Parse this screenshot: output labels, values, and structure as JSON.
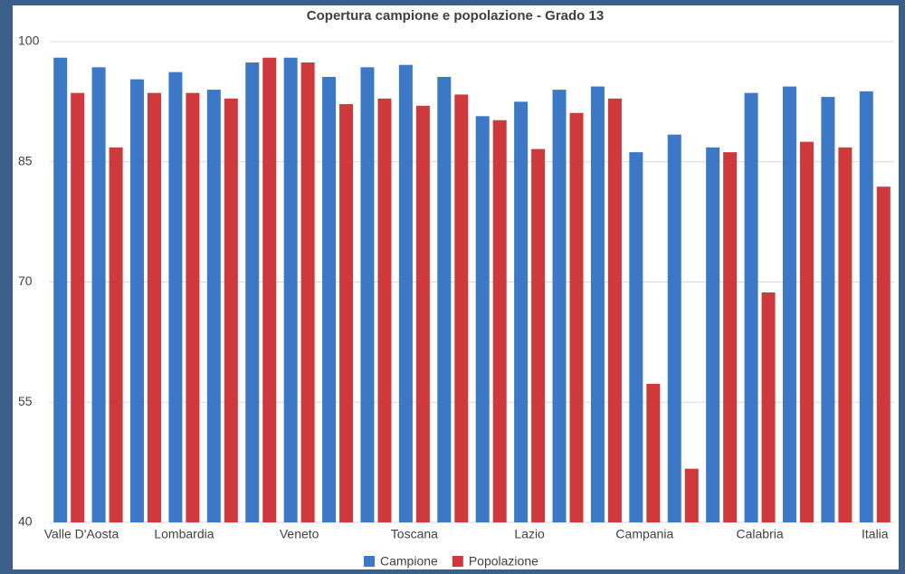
{
  "chart_data": {
    "type": "bar",
    "title": "Copertura campione e popolazione - Grado 13",
    "categories": [
      "Valle D'Aosta",
      null,
      null,
      "Lombardia",
      null,
      null,
      "Veneto",
      null,
      null,
      "Toscana",
      null,
      null,
      "Lazio",
      null,
      null,
      "Campania",
      null,
      null,
      "Calabria",
      null,
      null,
      "Italia"
    ],
    "series": [
      {
        "name": "Campione",
        "color": "#3b78c8",
        "values": [
          98.0,
          96.8,
          95.3,
          96.2,
          94.0,
          97.4,
          98.0,
          95.6,
          96.8,
          97.1,
          95.6,
          90.7,
          92.5,
          94.0,
          94.4,
          86.2,
          88.4,
          86.8,
          93.6,
          94.4,
          93.1,
          93.8
        ]
      },
      {
        "name": "Popolazione",
        "color": "#d0393b",
        "values": [
          93.6,
          86.8,
          93.6,
          93.6,
          92.9,
          98.0,
          97.4,
          92.2,
          92.9,
          92.0,
          93.4,
          90.2,
          86.6,
          91.1,
          92.9,
          57.3,
          46.7,
          86.2,
          68.7,
          87.5,
          86.8,
          81.9
        ]
      }
    ],
    "ylim": [
      40,
      100
    ],
    "yticks": [
      40,
      55,
      70,
      85,
      100
    ],
    "grid": true,
    "legend": "bottom"
  }
}
